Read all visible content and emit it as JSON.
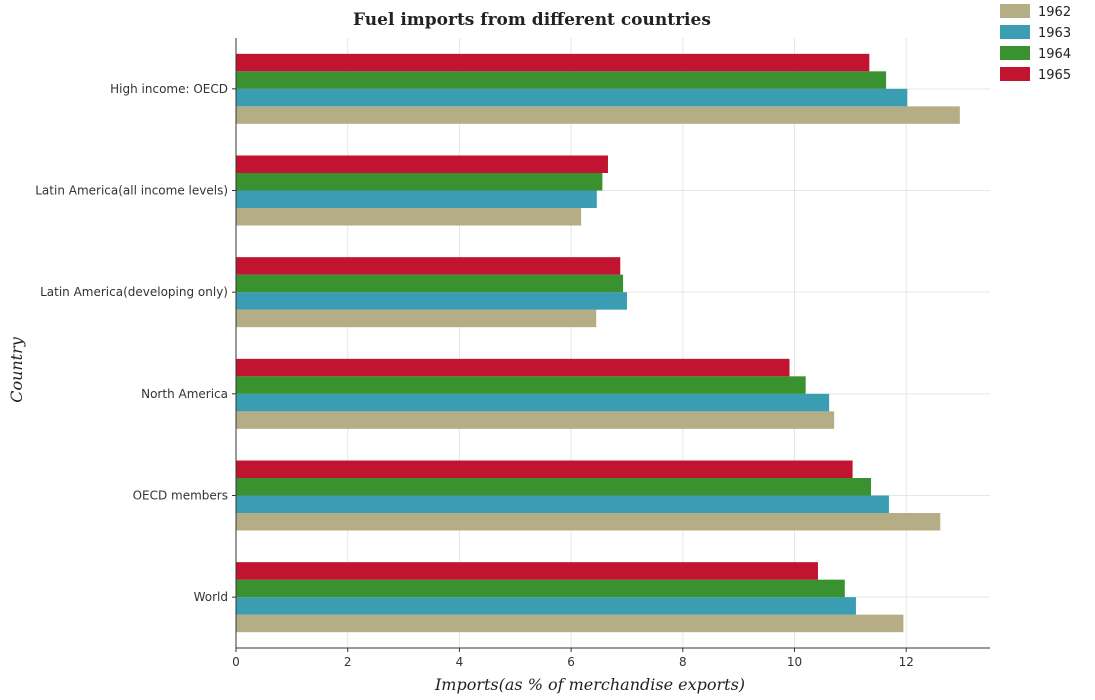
{
  "chart_data": {
    "type": "bar",
    "orientation": "horizontal",
    "title": "Fuel imports from different countries",
    "xlabel": "Imports(as % of merchandise exports)",
    "ylabel": "Country",
    "xlim": [
      0,
      13.5
    ],
    "xticks": [
      0,
      2,
      4,
      6,
      8,
      10,
      12
    ],
    "grid": true,
    "legend_position": "top-right",
    "categories": [
      "High income: OECD",
      "Latin America(all income levels)",
      "Latin America(developing only)",
      "North America",
      "OECD members",
      "World"
    ],
    "series": [
      {
        "name": "1962",
        "color": "#b5ad86",
        "values": [
          12.96,
          6.18,
          6.45,
          10.71,
          12.61,
          11.95
        ]
      },
      {
        "name": "1963",
        "color": "#3a9db2",
        "values": [
          12.02,
          6.46,
          7.0,
          10.62,
          11.69,
          11.1
        ]
      },
      {
        "name": "1964",
        "color": "#3a9130",
        "values": [
          11.64,
          6.56,
          6.93,
          10.2,
          11.37,
          10.9
        ]
      },
      {
        "name": "1965",
        "color": "#c01430",
        "values": [
          11.34,
          6.66,
          6.88,
          9.91,
          11.04,
          10.42
        ]
      }
    ]
  }
}
